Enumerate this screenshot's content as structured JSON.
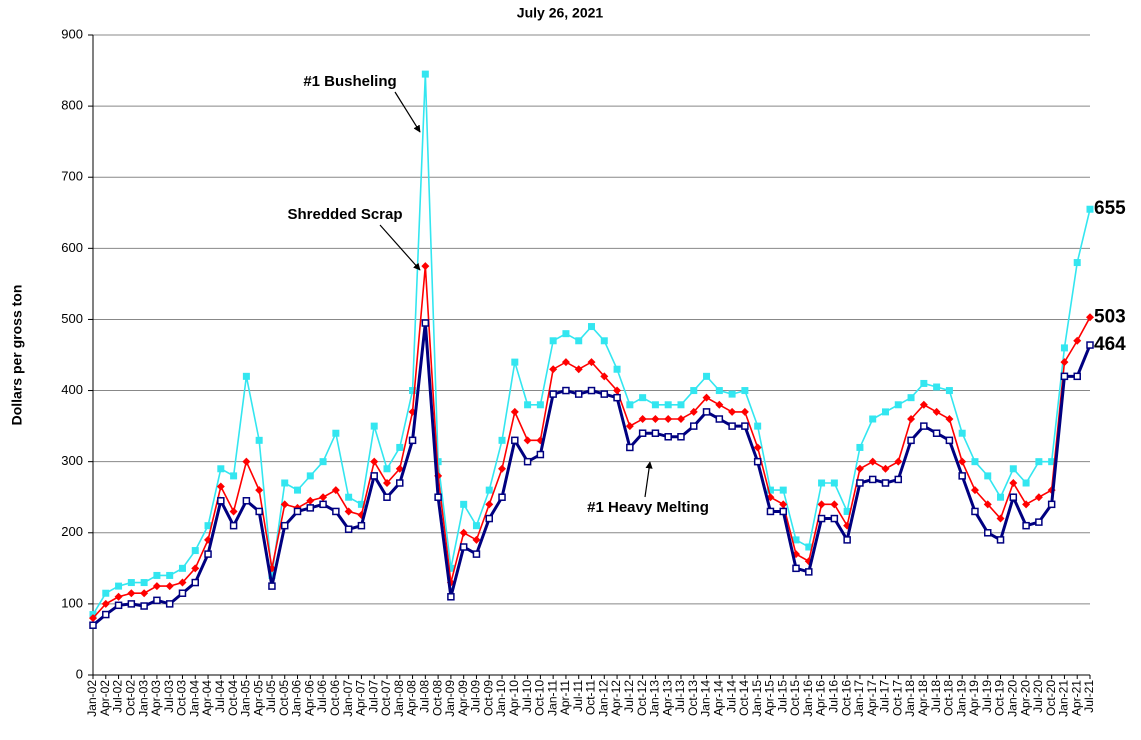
{
  "chart_data": {
    "type": "line",
    "title": "July 26, 2021",
    "y_label": "Dollars per gross ton",
    "categories": [
      "Jan-02",
      "Apr-02",
      "Jul-02",
      "Oct-02",
      "Jan-03",
      "Apr-03",
      "Jul-03",
      "Oct-03",
      "Jan-04",
      "Apr-04",
      "Jul-04",
      "Oct-04",
      "Jan-05",
      "Apr-05",
      "Jul-05",
      "Oct-05",
      "Jan-06",
      "Apr-06",
      "Jul-06",
      "Oct-06",
      "Jan-07",
      "Apr-07",
      "Jul-07",
      "Oct-07",
      "Jan-08",
      "Apr-08",
      "Jul-08",
      "Oct-08",
      "Jan-09",
      "Apr-09",
      "Jul-09",
      "Oct-09",
      "Jan-10",
      "Apr-10",
      "Jul-10",
      "Oct-10",
      "Jan-11",
      "Apr-11",
      "Jul-11",
      "Oct-11",
      "Jan-12",
      "Apr-12",
      "Jul-12",
      "Oct-12",
      "Jan-13",
      "Apr-13",
      "Jul-13",
      "Oct-13",
      "Jan-14",
      "Apr-14",
      "Jul-14",
      "Oct-14",
      "Jan-15",
      "Apr-15",
      "Jul-15",
      "Oct-15",
      "Jan-16",
      "Apr-16",
      "Jul-16",
      "Oct-16",
      "Jan-17",
      "Apr-17",
      "Jul-17",
      "Oct-17",
      "Jan-18",
      "Apr-18",
      "Jul-18",
      "Oct-18",
      "Jan-19",
      "Apr-19",
      "Jul-19",
      "Oct-19",
      "Jan-20",
      "Apr-20",
      "Jul-20",
      "Oct-20",
      "Jan-21",
      "Apr-21",
      "Jul-21"
    ],
    "series": [
      {
        "name": "#1 Busheling",
        "color": "#33e6f0",
        "marker": "square",
        "values": [
          85,
          115,
          125,
          130,
          130,
          140,
          140,
          150,
          175,
          210,
          290,
          280,
          420,
          330,
          140,
          270,
          260,
          280,
          300,
          340,
          250,
          240,
          350,
          290,
          320,
          400,
          845,
          300,
          150,
          240,
          210,
          260,
          330,
          440,
          380,
          380,
          470,
          480,
          470,
          490,
          470,
          430,
          380,
          390,
          380,
          380,
          380,
          400,
          420,
          400,
          395,
          400,
          350,
          260,
          260,
          190,
          180,
          270,
          270,
          230,
          320,
          360,
          370,
          380,
          390,
          410,
          405,
          400,
          340,
          300,
          280,
          250,
          290,
          270,
          300,
          300,
          460,
          580,
          655
        ]
      },
      {
        "name": "Shredded Scrap",
        "color": "#ff0000",
        "marker": "diamond",
        "values": [
          80,
          100,
          110,
          115,
          115,
          125,
          125,
          130,
          150,
          190,
          265,
          230,
          300,
          260,
          150,
          240,
          235,
          245,
          250,
          260,
          230,
          225,
          300,
          270,
          290,
          370,
          575,
          280,
          130,
          200,
          190,
          240,
          290,
          370,
          330,
          330,
          430,
          440,
          430,
          440,
          420,
          400,
          350,
          360,
          360,
          360,
          360,
          370,
          390,
          380,
          370,
          370,
          320,
          250,
          240,
          170,
          160,
          240,
          240,
          210,
          290,
          300,
          290,
          300,
          360,
          380,
          370,
          360,
          300,
          260,
          240,
          220,
          270,
          240,
          250,
          260,
          440,
          470,
          503
        ]
      },
      {
        "name": "#1 Heavy Melting",
        "color": "#000080",
        "marker": "hollow",
        "values": [
          70,
          85,
          98,
          100,
          97,
          105,
          100,
          115,
          130,
          170,
          245,
          210,
          245,
          230,
          125,
          210,
          230,
          235,
          240,
          230,
          205,
          210,
          280,
          250,
          270,
          330,
          495,
          250,
          110,
          180,
          170,
          220,
          250,
          330,
          300,
          310,
          395,
          400,
          395,
          400,
          395,
          390,
          320,
          340,
          340,
          335,
          335,
          350,
          370,
          360,
          350,
          350,
          300,
          230,
          230,
          150,
          145,
          220,
          220,
          190,
          270,
          275,
          270,
          275,
          330,
          350,
          340,
          330,
          280,
          230,
          200,
          190,
          250,
          210,
          215,
          240,
          420,
          420,
          464
        ]
      }
    ],
    "ylim": [
      0,
      900
    ],
    "yticks": [
      0,
      100,
      200,
      300,
      400,
      500,
      600,
      700,
      800,
      900
    ],
    "grid": true
  }
}
